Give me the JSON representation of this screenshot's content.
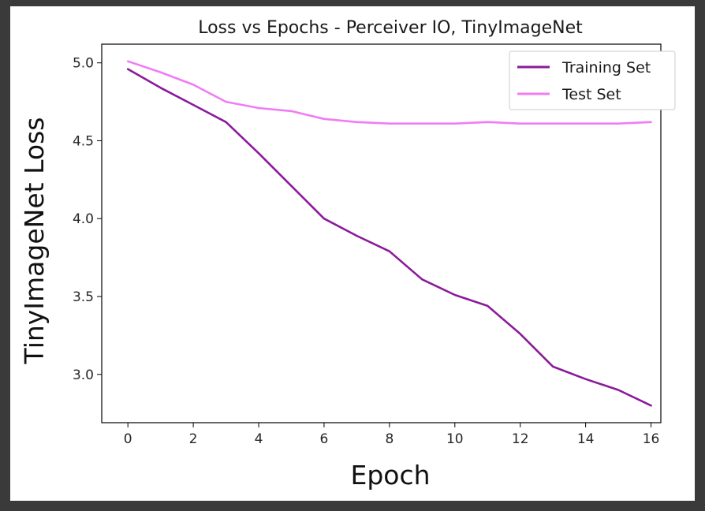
{
  "chart_data": {
    "type": "line",
    "title": "Loss vs Epochs - Perceiver IO, TinyImageNet",
    "xlabel": "Epoch",
    "ylabel": "TinyImageNet Loss",
    "xlim": [
      -0.8,
      16.3
    ],
    "ylim": [
      2.69,
      5.12
    ],
    "xticks": [
      0,
      2,
      4,
      6,
      8,
      10,
      12,
      14,
      16
    ],
    "yticks": [
      3.0,
      3.5,
      4.0,
      4.5,
      5.0
    ],
    "ytick_labels": [
      "3.0",
      "3.5",
      "4.0",
      "4.5",
      "5.0"
    ],
    "grid": false,
    "legend_position": "top-right",
    "x": [
      0,
      1,
      2,
      3,
      4,
      5,
      6,
      7,
      8,
      9,
      10,
      11,
      12,
      13,
      14,
      15,
      16
    ],
    "series": [
      {
        "name": "Training Set",
        "color": "#8b1a9b",
        "values": [
          4.96,
          4.84,
          4.73,
          4.62,
          4.42,
          4.21,
          4.0,
          3.89,
          3.79,
          3.61,
          3.51,
          3.44,
          3.26,
          3.05,
          2.97,
          2.9,
          2.8
        ]
      },
      {
        "name": "Test Set",
        "color": "#f07cf5",
        "values": [
          5.01,
          4.94,
          4.86,
          4.75,
          4.71,
          4.69,
          4.64,
          4.62,
          4.61,
          4.61,
          4.61,
          4.62,
          4.61,
          4.61,
          4.61,
          4.61,
          4.62
        ]
      }
    ]
  }
}
